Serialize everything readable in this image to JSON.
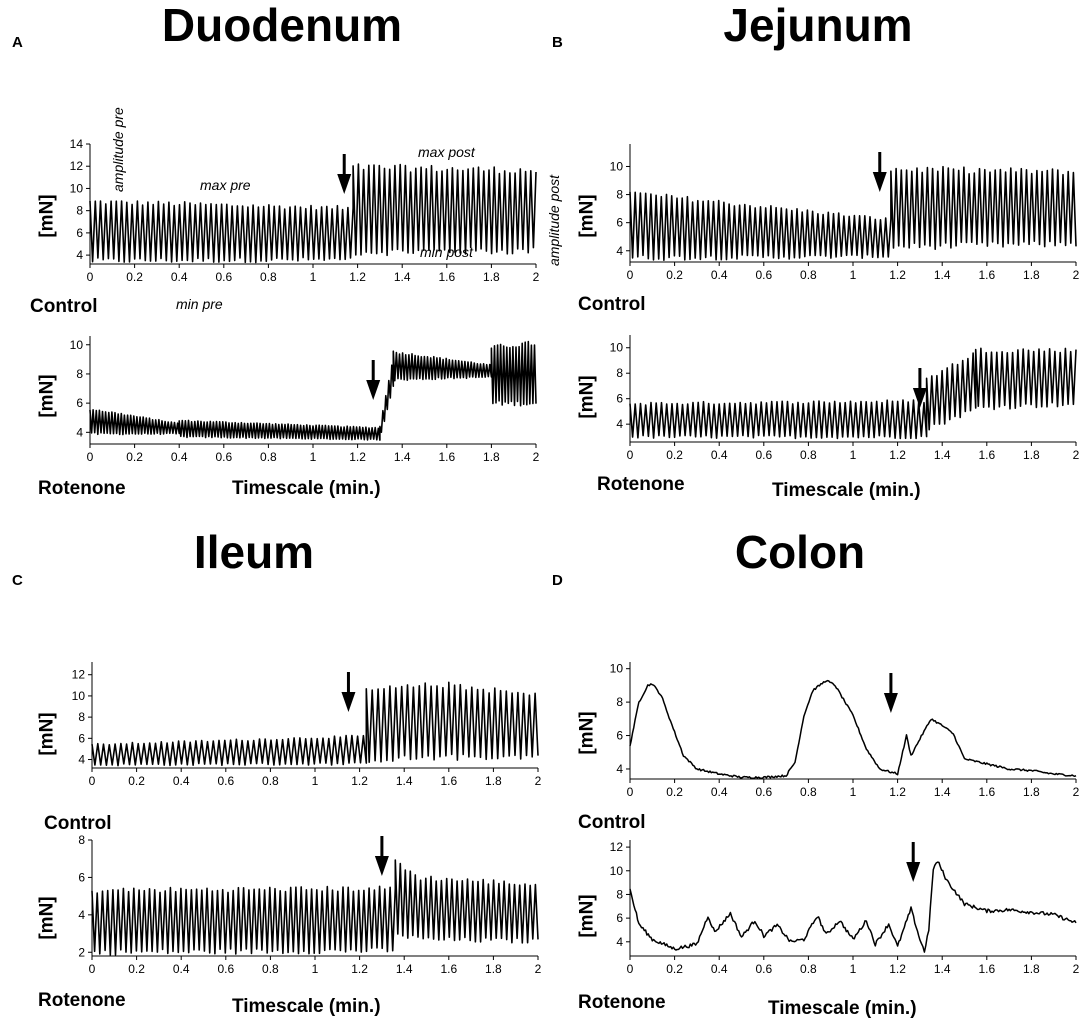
{
  "figure": {
    "panels": [
      {
        "letter": "A",
        "title": "Duodenum"
      },
      {
        "letter": "B",
        "title": "Jejunum"
      },
      {
        "letter": "C",
        "title": "Ileum"
      },
      {
        "letter": "D",
        "title": "Colon"
      }
    ],
    "condition_labels": {
      "control": "Control",
      "rotenone": "Rotenone"
    },
    "x_axis_title": "Timescale (min.)",
    "y_axis_label": "[mN]",
    "annotations": {
      "amplitude_pre": "amplitude pre",
      "max_pre": "max pre",
      "min_pre": "min pre",
      "max_post": "max post",
      "min_post": "min post",
      "amplitude_post": "amplitude post"
    },
    "trace_color": "#000000"
  },
  "chart_data": [
    {
      "type": "line",
      "panel": "A",
      "region": "Duodenum",
      "condition": "Control",
      "xlim": [
        0,
        2
      ],
      "ylim": [
        3.2,
        14
      ],
      "x_ticks": [
        "0",
        "0.2",
        "0.4",
        "0.6",
        "0.8",
        "1",
        "1.2",
        "1.4",
        "1.6",
        "1.8",
        "2"
      ],
      "y_ticks": [
        "4",
        "6",
        "8",
        "10",
        "12",
        "14"
      ],
      "arrow_x": 1.14,
      "trace": {
        "kind": "osc",
        "period": 0.0235,
        "segments": [
          {
            "x0": 0,
            "x1": 1.18,
            "min0": 3.5,
            "min1": 3.6,
            "max0": 8.8,
            "max1": 8.2
          },
          {
            "x0": 1.18,
            "x1": 2.0,
            "min0": 4.3,
            "min1": 4.4,
            "max0": 11.9,
            "max1": 11.6
          }
        ]
      }
    },
    {
      "type": "line",
      "panel": "A",
      "region": "Duodenum",
      "condition": "Rotenone",
      "xlim": [
        0,
        2
      ],
      "ylim": [
        3.2,
        10.6
      ],
      "x_ticks": [
        "0",
        "0.2",
        "0.4",
        "0.6",
        "0.8",
        "1",
        "1.2",
        "1.4",
        "1.6",
        "1.8",
        "2"
      ],
      "y_ticks": [
        "4",
        "6",
        "8",
        "10"
      ],
      "arrow_x": 1.27,
      "trace": {
        "kind": "osc",
        "period": 0.014,
        "segments": [
          {
            "x0": 0,
            "x1": 0.4,
            "min0": 3.9,
            "min1": 3.9,
            "max0": 5.6,
            "max1": 4.6
          },
          {
            "x0": 0.4,
            "x1": 1.3,
            "min0": 3.7,
            "min1": 3.5,
            "max0": 4.8,
            "max1": 4.3
          },
          {
            "x0": 1.3,
            "x1": 1.36,
            "min0": 3.6,
            "min1": 7.2,
            "max0": 4.4,
            "max1": 9.2
          },
          {
            "x0": 1.36,
            "x1": 1.8,
            "min0": 7.6,
            "min1": 7.8,
            "max0": 9.5,
            "max1": 8.6
          },
          {
            "x0": 1.8,
            "x1": 2.0,
            "min0": 6.0,
            "min1": 6.0,
            "max0": 9.8,
            "max1": 10.1
          }
        ]
      }
    },
    {
      "type": "line",
      "panel": "B",
      "region": "Jejunum",
      "condition": "Control",
      "xlim": [
        0,
        2
      ],
      "ylim": [
        3.2,
        11.6
      ],
      "x_ticks": [
        "0",
        "0.2",
        "0.4",
        "0.6",
        "0.8",
        "1",
        "1.2",
        "1.4",
        "1.6",
        "1.8",
        "2"
      ],
      "y_ticks": [
        "4",
        "6",
        "8",
        "10"
      ],
      "arrow_x": 1.12,
      "trace": {
        "kind": "osc",
        "period": 0.0235,
        "segments": [
          {
            "x0": 0,
            "x1": 1.17,
            "min0": 3.5,
            "min1": 3.6,
            "max0": 8.1,
            "max1": 6.2
          },
          {
            "x0": 1.17,
            "x1": 2.0,
            "min0": 4.3,
            "min1": 4.5,
            "max0": 9.8,
            "max1": 9.6
          }
        ]
      }
    },
    {
      "type": "line",
      "panel": "B",
      "region": "Jejunum",
      "condition": "Rotenone",
      "xlim": [
        0,
        2
      ],
      "ylim": [
        2.6,
        11
      ],
      "x_ticks": [
        "0",
        "0.2",
        "0.4",
        "0.6",
        "0.8",
        "1",
        "1.2",
        "1.4",
        "1.6",
        "1.8",
        "2"
      ],
      "y_ticks": [
        "4",
        "6",
        "8",
        "10"
      ],
      "arrow_x": 1.3,
      "trace": {
        "kind": "osc",
        "period": 0.0235,
        "segments": [
          {
            "x0": 0,
            "x1": 1.33,
            "min0": 3.0,
            "min1": 3.0,
            "max0": 5.6,
            "max1": 5.8
          },
          {
            "x0": 1.33,
            "x1": 1.55,
            "min0": 3.6,
            "min1": 5.2,
            "max0": 7.5,
            "max1": 9.6
          },
          {
            "x0": 1.55,
            "x1": 2.0,
            "min0": 5.3,
            "min1": 5.6,
            "max0": 9.8,
            "max1": 9.8
          }
        ]
      }
    },
    {
      "type": "line",
      "panel": "C",
      "region": "Ileum",
      "condition": "Control",
      "xlim": [
        0,
        2
      ],
      "ylim": [
        3.2,
        13.2
      ],
      "x_ticks": [
        "0",
        "0.2",
        "0.4",
        "0.6",
        "0.8",
        "1",
        "1.2",
        "1.4",
        "1.6",
        "1.8",
        "2"
      ],
      "y_ticks": [
        "4",
        "6",
        "8",
        "10",
        "12"
      ],
      "arrow_x": 1.15,
      "trace": {
        "kind": "osc",
        "period": 0.026,
        "segments": [
          {
            "x0": 0,
            "x1": 1.23,
            "min0": 3.5,
            "min1": 3.6,
            "max0": 5.4,
            "max1": 6.2
          },
          {
            "x0": 1.23,
            "x1": 1.6,
            "min0": 4.0,
            "min1": 4.2,
            "max0": 10.5,
            "max1": 11.1
          },
          {
            "x0": 1.6,
            "x1": 2.0,
            "min0": 4.2,
            "min1": 4.3,
            "max0": 11.0,
            "max1": 10.0
          }
        ]
      }
    },
    {
      "type": "line",
      "panel": "C",
      "region": "Ileum",
      "condition": "Rotenone",
      "xlim": [
        0,
        2
      ],
      "ylim": [
        1.8,
        8
      ],
      "x_ticks": [
        "0",
        "0.2",
        "0.4",
        "0.6",
        "0.8",
        "1",
        "1.2",
        "1.4",
        "1.6",
        "1.8",
        "2"
      ],
      "y_ticks": [
        "2",
        "4",
        "6",
        "8"
      ],
      "arrow_x": 1.3,
      "trace": {
        "kind": "osc",
        "period": 0.0235,
        "segments": [
          {
            "x0": 0,
            "x1": 1.36,
            "min0": 2.0,
            "min1": 2.1,
            "max0": 5.3,
            "max1": 5.4
          },
          {
            "x0": 1.36,
            "x1": 1.45,
            "min0": 3.0,
            "min1": 2.8,
            "max0": 6.8,
            "max1": 6.2
          },
          {
            "x0": 1.45,
            "x1": 2.0,
            "min0": 2.7,
            "min1": 2.6,
            "max0": 6.0,
            "max1": 5.6
          }
        ]
      }
    },
    {
      "type": "line",
      "panel": "D",
      "region": "Colon",
      "condition": "Control",
      "xlim": [
        0,
        2
      ],
      "ylim": [
        3.4,
        10.4
      ],
      "x_ticks": [
        "0",
        "0.2",
        "0.4",
        "0.6",
        "0.8",
        "1",
        "1.2",
        "1.4",
        "1.6",
        "1.8",
        "2"
      ],
      "y_ticks": [
        "4",
        "6",
        "8",
        "10"
      ],
      "arrow_x": 1.17,
      "trace": {
        "kind": "points",
        "noise": 0.12,
        "points": [
          [
            0,
            5.4
          ],
          [
            0.04,
            8.0
          ],
          [
            0.08,
            9.0
          ],
          [
            0.1,
            9.1
          ],
          [
            0.14,
            8.4
          ],
          [
            0.2,
            6.2
          ],
          [
            0.24,
            4.8
          ],
          [
            0.3,
            4.0
          ],
          [
            0.4,
            3.7
          ],
          [
            0.5,
            3.5
          ],
          [
            0.6,
            3.5
          ],
          [
            0.7,
            3.6
          ],
          [
            0.74,
            4.4
          ],
          [
            0.78,
            7.2
          ],
          [
            0.82,
            8.7
          ],
          [
            0.88,
            9.3
          ],
          [
            0.92,
            9.0
          ],
          [
            1.0,
            7.2
          ],
          [
            1.06,
            5.2
          ],
          [
            1.12,
            4.0
          ],
          [
            1.2,
            3.7
          ],
          [
            1.24,
            6.0
          ],
          [
            1.26,
            4.8
          ],
          [
            1.3,
            5.8
          ],
          [
            1.35,
            7.0
          ],
          [
            1.4,
            6.6
          ],
          [
            1.45,
            6.1
          ],
          [
            1.5,
            4.6
          ],
          [
            1.6,
            4.3
          ],
          [
            1.7,
            4.0
          ],
          [
            1.8,
            3.9
          ],
          [
            1.9,
            3.7
          ],
          [
            2.0,
            3.6
          ]
        ]
      }
    },
    {
      "type": "line",
      "panel": "D",
      "region": "Colon",
      "condition": "Rotenone",
      "xlim": [
        0,
        2
      ],
      "ylim": [
        2.8,
        12.6
      ],
      "x_ticks": [
        "0",
        "0.2",
        "0.4",
        "0.6",
        "0.8",
        "1",
        "1.2",
        "1.4",
        "1.6",
        "1.8",
        "2"
      ],
      "y_ticks": [
        "4",
        "6",
        "8",
        "10",
        "12"
      ],
      "arrow_x": 1.27,
      "trace": {
        "kind": "points",
        "noise": 0.3,
        "points": [
          [
            0,
            8.4
          ],
          [
            0.04,
            5.5
          ],
          [
            0.1,
            4.2
          ],
          [
            0.2,
            3.4
          ],
          [
            0.3,
            3.8
          ],
          [
            0.35,
            6.2
          ],
          [
            0.38,
            4.8
          ],
          [
            0.45,
            6.4
          ],
          [
            0.5,
            4.4
          ],
          [
            0.56,
            5.8
          ],
          [
            0.6,
            4.5
          ],
          [
            0.66,
            5.4
          ],
          [
            0.72,
            4.0
          ],
          [
            0.78,
            4.2
          ],
          [
            0.84,
            6.2
          ],
          [
            0.88,
            4.6
          ],
          [
            0.94,
            5.8
          ],
          [
            1.0,
            4.2
          ],
          [
            1.06,
            5.8
          ],
          [
            1.1,
            3.8
          ],
          [
            1.16,
            5.5
          ],
          [
            1.2,
            3.6
          ],
          [
            1.26,
            6.8
          ],
          [
            1.3,
            4.2
          ],
          [
            1.32,
            3.2
          ],
          [
            1.34,
            5.0
          ],
          [
            1.36,
            10.2
          ],
          [
            1.38,
            10.8
          ],
          [
            1.42,
            9.2
          ],
          [
            1.5,
            7.2
          ],
          [
            1.6,
            6.6
          ],
          [
            1.7,
            6.7
          ],
          [
            1.8,
            6.5
          ],
          [
            1.9,
            6.3
          ],
          [
            2.0,
            5.6
          ]
        ]
      }
    }
  ]
}
